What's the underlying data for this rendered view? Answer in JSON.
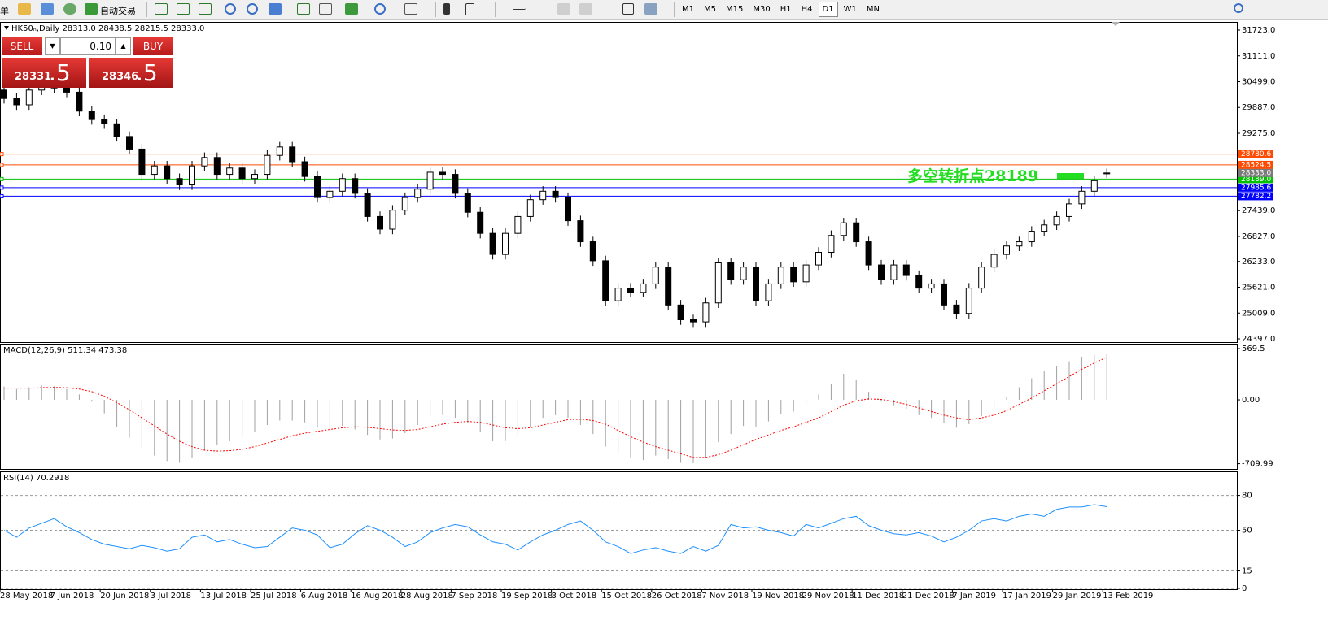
{
  "toolbar": {
    "menu": "单",
    "autotrade": "自动交易",
    "timeframes": [
      {
        "label": "M1",
        "active": false
      },
      {
        "label": "M5",
        "active": false
      },
      {
        "label": "M15",
        "active": false
      },
      {
        "label": "M30",
        "active": false
      },
      {
        "label": "H1",
        "active": false
      },
      {
        "label": "H4",
        "active": false
      },
      {
        "label": "D1",
        "active": true
      },
      {
        "label": "W1",
        "active": false
      },
      {
        "label": "MN",
        "active": false
      }
    ]
  },
  "order_panel": {
    "sell": "SELL",
    "buy": "BUY",
    "volume": "0.10",
    "bid_main": "28331",
    "bid_frac": ".5",
    "ask_main": "28346",
    "ask_frac": ".5"
  },
  "chart_data": [
    {
      "type": "candlestick",
      "title": "HK50ₙ,Daily  28313.0 28438.5 28215.5 28333.0",
      "categories": [
        "28 May 2018",
        null,
        null,
        null,
        "7 Jun 2018",
        null,
        null,
        null,
        "20 Jun 2018",
        null,
        null,
        null,
        "3 Jul 2018",
        null,
        null,
        null,
        "13 Jul 2018",
        null,
        null,
        null,
        "25 Jul 2018",
        null,
        null,
        null,
        "6 Aug 2018",
        null,
        null,
        null,
        "16 Aug 2018",
        null,
        null,
        null,
        "28 Aug 2018",
        null,
        null,
        null,
        "7 Sep 2018",
        null,
        null,
        null,
        "19 Sep 2018",
        null,
        null,
        null,
        "3 Oct 2018",
        null,
        null,
        null,
        "15 Oct 2018",
        null,
        null,
        null,
        "26 Oct 2018",
        null,
        null,
        null,
        "7 Nov 2018",
        null,
        null,
        null,
        "19 Nov 2018",
        null,
        null,
        null,
        "29 Nov 2018",
        null,
        null,
        null,
        "11 Dec 2018",
        null,
        null,
        null,
        "21 Dec 2018",
        null,
        null,
        null,
        "7 Jan 2019",
        null,
        null,
        null,
        "17 Jan 2019",
        null,
        null,
        null,
        "29 Jan 2019",
        null,
        null,
        null,
        "13 Feb 2019"
      ],
      "open": [
        30300,
        30100,
        29950,
        30300,
        30400,
        30350,
        30250,
        29800,
        29600,
        29500,
        29200,
        28900,
        28300,
        28500,
        28200,
        28050,
        28500,
        28700,
        28300,
        28450,
        28200,
        28300,
        28750,
        28950,
        28600,
        28250,
        27750,
        27900,
        28200,
        27850,
        27300,
        27000,
        27450,
        27750,
        27950,
        28350,
        28300,
        27850,
        27400,
        26900,
        26400,
        26900,
        27300,
        27700,
        27900,
        27750,
        27200,
        26700,
        26250,
        25300,
        25600,
        25500,
        25700,
        26100,
        25200,
        24850,
        24800,
        25250,
        26200,
        25800,
        26100,
        25300,
        25700,
        26100,
        25750,
        26150,
        26450,
        26850,
        27150,
        26700,
        26150,
        25800,
        26150,
        25900,
        25600,
        25700,
        25200,
        25000,
        25600,
        26100,
        26400,
        26600,
        26700,
        26950,
        27100,
        27300,
        27600,
        27900,
        28313
      ],
      "high": [
        30420,
        30220,
        30420,
        30520,
        30520,
        30470,
        30370,
        29920,
        29720,
        29620,
        29320,
        29020,
        28620,
        28620,
        28320,
        28620,
        28820,
        28820,
        28570,
        28570,
        28420,
        28870,
        29070,
        29070,
        28720,
        28370,
        28020,
        28320,
        28320,
        27970,
        27420,
        27570,
        27870,
        28070,
        28470,
        28470,
        28420,
        27970,
        27520,
        27020,
        27020,
        27420,
        27820,
        28020,
        28020,
        27870,
        27320,
        26820,
        26370,
        25720,
        25720,
        25820,
        26220,
        26220,
        25320,
        24970,
        25370,
        26320,
        26320,
        26220,
        26220,
        25820,
        26220,
        26220,
        26270,
        26570,
        26970,
        27270,
        27270,
        26820,
        26270,
        26270,
        26270,
        26020,
        25820,
        25820,
        25320,
        25720,
        26220,
        26520,
        26720,
        26820,
        27070,
        27220,
        27420,
        27720,
        28020,
        28270,
        28438.5
      ],
      "low": [
        29980,
        29830,
        29830,
        30180,
        30230,
        30130,
        29680,
        29480,
        29380,
        29080,
        28780,
        28180,
        28180,
        28080,
        27930,
        27930,
        28380,
        28180,
        28180,
        28080,
        28080,
        28180,
        28630,
        28480,
        28130,
        27630,
        27630,
        27780,
        27730,
        27180,
        26880,
        26880,
        27330,
        27630,
        27830,
        28180,
        27730,
        27280,
        26780,
        26280,
        26280,
        26780,
        27180,
        27580,
        27630,
        27080,
        26580,
        26130,
        25180,
        25180,
        25380,
        25380,
        25580,
        25080,
        24730,
        24680,
        24680,
        25130,
        25680,
        25680,
        25180,
        25180,
        25580,
        25630,
        25630,
        26030,
        26330,
        26730,
        26580,
        26030,
        25680,
        25680,
        25780,
        25480,
        25480,
        25080,
        24880,
        24880,
        25480,
        25980,
        26280,
        26480,
        26580,
        26830,
        26980,
        27180,
        27480,
        27780,
        28215.5
      ],
      "close": [
        30100,
        29950,
        30300,
        30400,
        30350,
        30250,
        29800,
        29600,
        29500,
        29200,
        28900,
        28300,
        28500,
        28200,
        28050,
        28500,
        28700,
        28300,
        28450,
        28200,
        28300,
        28750,
        28950,
        28600,
        28250,
        27750,
        27900,
        28200,
        27850,
        27300,
        27000,
        27450,
        27750,
        27950,
        28350,
        28300,
        27850,
        27400,
        26900,
        26400,
        26900,
        27300,
        27700,
        27900,
        27750,
        27200,
        26700,
        26250,
        25300,
        25600,
        25500,
        25700,
        26100,
        25200,
        24850,
        24800,
        25250,
        26200,
        25800,
        26100,
        25300,
        25700,
        26100,
        25750,
        26150,
        26450,
        26850,
        27150,
        26700,
        26150,
        25800,
        26150,
        25900,
        25600,
        25700,
        25200,
        25000,
        25600,
        26100,
        26400,
        26600,
        26700,
        26950,
        27100,
        27300,
        27600,
        27900,
        28150,
        28333
      ],
      "up_color": "#ffffff",
      "down_color": "#000000",
      "ylim": [
        24320,
        31916
      ],
      "yticks": [
        {
          "value": 31723,
          "label": "31723.0"
        },
        {
          "value": 31111,
          "label": "31111.0"
        },
        {
          "value": 30499,
          "label": "30499.0"
        },
        {
          "value": 29887,
          "label": "29887.0"
        },
        {
          "value": 29275,
          "label": "29275.0"
        },
        {
          "value": 27439,
          "label": "27439.0"
        },
        {
          "value": 26827,
          "label": "26827.0"
        },
        {
          "value": 26233,
          "label": "26233.0"
        },
        {
          "value": 25621,
          "label": "25621.0"
        },
        {
          "value": 25009,
          "label": "25009.0"
        },
        {
          "value": 24397,
          "label": "24397.0"
        }
      ],
      "levels": [
        {
          "value": 28780.6,
          "color": "#ff4a00"
        },
        {
          "value": 28524.5,
          "color": "#ff4a00"
        },
        {
          "value": 28189,
          "label": "28189.0",
          "color": "#00c000"
        },
        {
          "value": 27985.6,
          "color": "#0000ff"
        },
        {
          "value": 27782.2,
          "color": "#0000ff"
        }
      ],
      "current_price": {
        "value": 28333,
        "label": "28333.0",
        "color": "#7a7a7a"
      },
      "annotation": "多空转折点28189",
      "annotation_color": "#22dd22"
    },
    {
      "type": "macd",
      "title": "MACD(12,26,9) 511.34 473.38",
      "histogram": [
        150,
        120,
        140,
        160,
        150,
        120,
        60,
        -20,
        -150,
        -300,
        -420,
        -550,
        -620,
        -680,
        -700,
        -650,
        -560,
        -500,
        -460,
        -420,
        -360,
        -280,
        -230,
        -230,
        -250,
        -310,
        -320,
        -290,
        -330,
        -390,
        -440,
        -430,
        -370,
        -280,
        -190,
        -170,
        -200,
        -260,
        -360,
        -460,
        -460,
        -390,
        -300,
        -200,
        -170,
        -200,
        -280,
        -380,
        -520,
        -600,
        -650,
        -670,
        -620,
        -660,
        -700,
        -705,
        -640,
        -470,
        -380,
        -290,
        -300,
        -240,
        -160,
        -130,
        -40,
        60,
        180,
        290,
        220,
        90,
        -20,
        -60,
        -100,
        -170,
        -200,
        -260,
        -310,
        -270,
        -180,
        -80,
        30,
        140,
        240,
        320,
        380,
        430,
        480,
        500,
        511.34
      ],
      "signal": [
        130,
        130,
        130,
        135,
        138,
        135,
        120,
        92,
        40,
        -30,
        -110,
        -200,
        -290,
        -380,
        -460,
        -520,
        -560,
        -570,
        -565,
        -550,
        -520,
        -480,
        -440,
        -400,
        -370,
        -350,
        -330,
        -310,
        -300,
        -305,
        -320,
        -335,
        -340,
        -330,
        -300,
        -270,
        -250,
        -240,
        -250,
        -280,
        -310,
        -320,
        -310,
        -280,
        -250,
        -220,
        -215,
        -230,
        -270,
        -340,
        -410,
        -470,
        -520,
        -560,
        -600,
        -640,
        -640,
        -610,
        -560,
        -500,
        -440,
        -390,
        -340,
        -300,
        -250,
        -200,
        -130,
        -60,
        -10,
        10,
        5,
        -20,
        -50,
        -90,
        -130,
        -170,
        -200,
        -220,
        -200,
        -170,
        -120,
        -50,
        20,
        100,
        180,
        260,
        340,
        410,
        473.38
      ],
      "histogram_color": "#a0a0a0",
      "signal_color": "#ff0000",
      "ylim": [
        -768,
        624
      ],
      "yticks": [
        569.5,
        {
          "value": 0,
          "label": "0.00"
        },
        -709.99
      ]
    },
    {
      "type": "line",
      "title": "RSI(14) 70.2918",
      "values": [
        50,
        44,
        52,
        56,
        60,
        53,
        48,
        42,
        38,
        36,
        34,
        37,
        35,
        32,
        34,
        44,
        46,
        40,
        42,
        38,
        35,
        36,
        44,
        52,
        50,
        46,
        35,
        38,
        47,
        54,
        50,
        44,
        36,
        40,
        48,
        52,
        55,
        53,
        46,
        40,
        38,
        33,
        40,
        46,
        50,
        55,
        58,
        50,
        40,
        36,
        30,
        33,
        35,
        32,
        30,
        36,
        32,
        37,
        55,
        52,
        53,
        50,
        48,
        45,
        55,
        52,
        56,
        60,
        62,
        54,
        50,
        47,
        46,
        48,
        45,
        40,
        44,
        50,
        58,
        60,
        58,
        62,
        64,
        62,
        68,
        70,
        70,
        72,
        70.2918
      ],
      "color": "#1e90ff",
      "ylim": [
        0,
        100
      ],
      "yticks": [
        80,
        50,
        15,
        0
      ],
      "grid": true
    }
  ]
}
